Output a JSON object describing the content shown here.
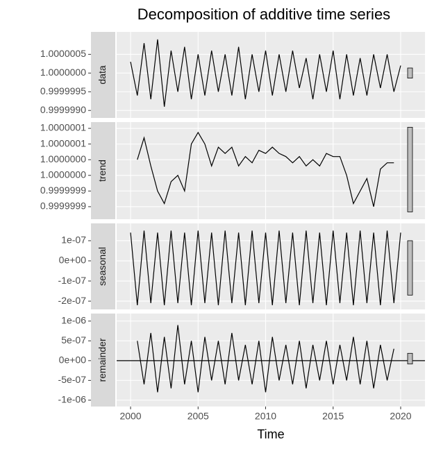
{
  "chart_data": [
    {
      "type": "line",
      "title": "Decomposition of additive time series",
      "strip": "data",
      "x": [
        2000,
        2000.5,
        2001,
        2001.5,
        2002,
        2002.5,
        2003,
        2003.5,
        2004,
        2004.5,
        2005,
        2005.5,
        2006,
        2006.5,
        2007,
        2007.5,
        2008,
        2008.5,
        2009,
        2009.5,
        2010,
        2010.5,
        2011,
        2011.5,
        2012,
        2012.5,
        2013,
        2013.5,
        2014,
        2014.5,
        2015,
        2015.5,
        2016,
        2016.5,
        2017,
        2017.5,
        2018,
        2018.5,
        2019,
        2019.5,
        2020
      ],
      "values": [
        1.0000003,
        0.9999994,
        1.0000008,
        0.9999993,
        1.0000009,
        0.9999991,
        1.0000006,
        0.9999995,
        1.0000007,
        0.9999993,
        1.0000005,
        0.9999994,
        1.0000006,
        0.9999995,
        1.0000005,
        0.9999994,
        1.0000007,
        0.9999993,
        1.0000005,
        0.9999995,
        1.0000006,
        0.9999994,
        1.0000005,
        0.9999995,
        1.0000006,
        0.9999996,
        1.0000004,
        0.9999993,
        1.0000005,
        0.9999995,
        1.0000006,
        0.9999993,
        1.0000005,
        0.9999994,
        1.0000004,
        0.9999994,
        1.0000005,
        0.9999996,
        1.0000005,
        0.9999995,
        1.0000002
      ],
      "color": "#000000",
      "scale_bar": 2.7e-07,
      "xlim": [
        1998.97,
        2021.8
      ],
      "ylim": [
        0.9999988,
        1.0000011
      ],
      "yticks": [
        {
          "value": 0.999999,
          "label": "0.9999990"
        },
        0.9999995,
        {
          "value": 1,
          "label": "1.0000000"
        },
        1.0000005
      ],
      "grid": true
    },
    {
      "type": "line",
      "strip": "trend",
      "x": [
        2000,
        2000.5,
        2001,
        2001.5,
        2002,
        2002.5,
        2003,
        2003.5,
        2004,
        2004.5,
        2005,
        2005.5,
        2006,
        2006.5,
        2007,
        2007.5,
        2008,
        2008.5,
        2009,
        2009.5,
        2010,
        2010.5,
        2011,
        2011.5,
        2012,
        2012.5,
        2013,
        2013.5,
        2014,
        2014.5,
        2015,
        2015.5,
        2016,
        2016.5,
        2017,
        2017.5,
        2018,
        2018.5,
        2019,
        2019.5,
        2020
      ],
      "values": [
        null,
        1.0,
        1.00000007,
        0.99999998,
        0.9999999,
        0.99999986,
        0.99999993,
        0.99999995,
        0.9999999,
        1.00000005,
        1.000000087,
        1.00000005,
        0.99999998,
        1.00000004,
        1.00000002,
        1.00000004,
        0.99999998,
        1.00000001,
        0.99999999,
        1.00000003,
        1.00000002,
        1.00000004,
        1.00000002,
        1.00000001,
        0.99999999,
        1.00000001,
        0.99999998,
        1.0,
        0.99999998,
        1.00000002,
        1.00000001,
        1.00000001,
        0.99999995,
        0.99999986,
        0.9999999,
        0.99999994,
        0.99999985,
        0.99999997,
        0.99999999,
        0.99999999,
        null
      ],
      "color": "#000000",
      "scale_bar": 2.7e-07,
      "xlim": [
        1998.97,
        2021.8
      ],
      "ylim": [
        0.99999981,
        1.00000012
      ],
      "yticks": [
        {
          "value": 0.99999985,
          "label": "0.9999999"
        },
        {
          "value": 0.9999999,
          "label": "0.9999999"
        },
        {
          "value": 0.99999995,
          "label": "1.0000000"
        },
        {
          "value": 1,
          "label": "1.0000000"
        },
        {
          "value": 1.00000005,
          "label": "1.0000001"
        },
        {
          "value": 1.0000001,
          "label": "1.0000001"
        }
      ],
      "grid": true
    },
    {
      "type": "line",
      "strip": "seasonal",
      "x": [
        2000,
        2000.5,
        2001,
        2001.5,
        2002,
        2002.5,
        2003,
        2003.5,
        2004,
        2004.5,
        2005,
        2005.5,
        2006,
        2006.5,
        2007,
        2007.5,
        2008,
        2008.5,
        2009,
        2009.5,
        2010,
        2010.5,
        2011,
        2011.5,
        2012,
        2012.5,
        2013,
        2013.5,
        2014,
        2014.5,
        2015,
        2015.5,
        2016,
        2016.5,
        2017,
        2017.5,
        2018,
        2018.5,
        2019,
        2019.5,
        2020
      ],
      "values": [
        1.4e-07,
        -2.2e-07,
        1.5e-07,
        -2.1e-07,
        1.4e-07,
        -2.2e-07,
        1.5e-07,
        -2.1e-07,
        1.4e-07,
        -2.2e-07,
        1.5e-07,
        -2.1e-07,
        1.4e-07,
        -2.2e-07,
        1.5e-07,
        -2.1e-07,
        1.4e-07,
        -2.2e-07,
        1.5e-07,
        -2.1e-07,
        1.4e-07,
        -2.2e-07,
        1.5e-07,
        -2.1e-07,
        1.4e-07,
        -2.2e-07,
        1.5e-07,
        -2.1e-07,
        1.4e-07,
        -2.2e-07,
        1.5e-07,
        -2.1e-07,
        1.4e-07,
        -2.2e-07,
        1.5e-07,
        -2.1e-07,
        1.4e-07,
        -2.2e-07,
        1.5e-07,
        -2.1e-07,
        1.4e-07
      ],
      "color": "#000000",
      "scale_bar": 2.7e-07,
      "xlim": [
        1998.97,
        2021.8
      ],
      "ylim": [
        -2.41e-07,
        1.86e-07
      ],
      "yticks": [
        {
          "value": -2e-07,
          "label": "-2e-07"
        },
        {
          "value": -1e-07,
          "label": "-1e-07"
        },
        {
          "value": 0,
          "label": "0e+00"
        },
        {
          "value": 1e-07,
          "label": "1e-07"
        }
      ],
      "grid": true
    },
    {
      "type": "line",
      "strip": "remainder",
      "x_label": "Time",
      "x": [
        2000,
        2000.5,
        2001,
        2001.5,
        2002,
        2002.5,
        2003,
        2003.5,
        2004,
        2004.5,
        2005,
        2005.5,
        2006,
        2006.5,
        2007,
        2007.5,
        2008,
        2008.5,
        2009,
        2009.5,
        2010,
        2010.5,
        2011,
        2011.5,
        2012,
        2012.5,
        2013,
        2013.5,
        2014,
        2014.5,
        2015,
        2015.5,
        2016,
        2016.5,
        2017,
        2017.5,
        2018,
        2018.5,
        2019,
        2019.5,
        2020
      ],
      "values": [
        null,
        5e-07,
        -6e-07,
        7e-07,
        -8e-07,
        6e-07,
        -7e-07,
        9e-07,
        -6e-07,
        5e-07,
        -8e-07,
        6e-07,
        -5e-07,
        5e-07,
        -6e-07,
        7e-07,
        -5e-07,
        4e-07,
        -6e-07,
        5e-07,
        -8e-07,
        6e-07,
        -5e-07,
        4e-07,
        -6e-07,
        5e-07,
        -7e-07,
        4e-07,
        -5e-07,
        5e-07,
        -6e-07,
        4e-07,
        -5e-07,
        6e-07,
        -6e-07,
        5e-07,
        -7e-07,
        4e-07,
        -5e-07,
        3e-07,
        null
      ],
      "color": "#000000",
      "scale_bar": 2.7e-07,
      "xlim": [
        1998.97,
        2021.8
      ],
      "ylim": [
        -1.16e-06,
        1.19e-06
      ],
      "yticks": [
        {
          "value": -1e-06,
          "label": "-1e-06"
        },
        {
          "value": -5e-07,
          "label": "-5e-07"
        },
        {
          "value": 0,
          "label": "0e+00"
        },
        {
          "value": 5e-07,
          "label": "5e-07"
        },
        {
          "value": 1e-06,
          "label": "1e-06"
        }
      ],
      "xticks": [
        2000,
        2005,
        2010,
        2015,
        2020
      ],
      "grid": true
    }
  ]
}
